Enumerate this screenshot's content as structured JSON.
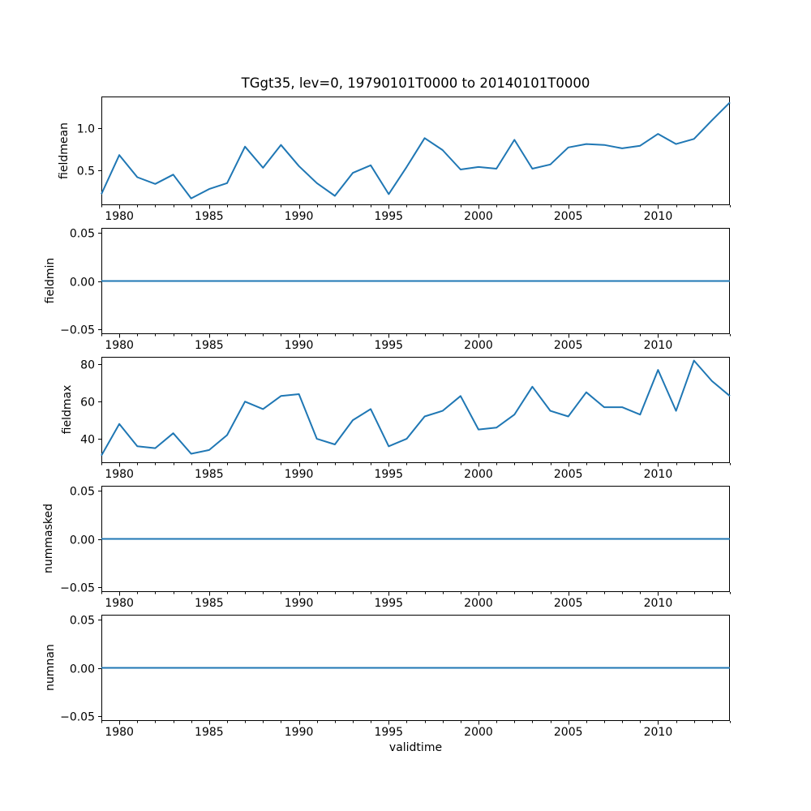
{
  "chart_data": {
    "type": "line",
    "title": "TGgt35, lev=0, 19790101T0000 to 20140101T0000",
    "xlabel": "validtime",
    "line_color": "#1f77b4",
    "grid": false,
    "legend": "none",
    "x": [
      1979,
      1980,
      1981,
      1982,
      1983,
      1984,
      1985,
      1986,
      1987,
      1988,
      1989,
      1990,
      1991,
      1992,
      1993,
      1994,
      1995,
      1996,
      1997,
      1998,
      1999,
      2000,
      2001,
      2002,
      2003,
      2004,
      2005,
      2006,
      2007,
      2008,
      2009,
      2010,
      2011,
      2012,
      2013,
      2014
    ],
    "xlim": [
      1979,
      2014
    ],
    "xticks": [
      1980,
      1985,
      1990,
      1995,
      2000,
      2005,
      2010
    ],
    "xtick_labels": [
      "1980",
      "1985",
      "1990",
      "1995",
      "2000",
      "2005",
      "2010"
    ],
    "subplots": [
      {
        "ylabel": "fieldmean",
        "values": [
          0.22,
          0.68,
          0.42,
          0.34,
          0.45,
          0.17,
          0.28,
          0.35,
          0.78,
          0.53,
          0.8,
          0.55,
          0.35,
          0.2,
          0.47,
          0.56,
          0.22,
          0.54,
          0.88,
          0.74,
          0.51,
          0.54,
          0.52,
          0.86,
          0.52,
          0.57,
          0.77,
          0.81,
          0.8,
          0.76,
          0.79,
          0.93,
          0.81,
          0.87,
          1.09,
          1.3
        ],
        "ylim": [
          0.09,
          1.37
        ],
        "yticks": [
          0.5,
          1.0
        ],
        "ytick_labels": [
          "0.5",
          "1.0"
        ]
      },
      {
        "ylabel": "fieldmin",
        "values": [
          0,
          0,
          0,
          0,
          0,
          0,
          0,
          0,
          0,
          0,
          0,
          0,
          0,
          0,
          0,
          0,
          0,
          0,
          0,
          0,
          0,
          0,
          0,
          0,
          0,
          0,
          0,
          0,
          0,
          0,
          0,
          0,
          0,
          0,
          0,
          0
        ],
        "ylim": [
          -0.055,
          0.055
        ],
        "yticks": [
          -0.05,
          0.0,
          0.05
        ],
        "ytick_labels": [
          "−0.05",
          "0.00",
          "0.05"
        ]
      },
      {
        "ylabel": "fieldmax",
        "values": [
          31,
          48,
          36,
          35,
          43,
          32,
          34,
          42,
          60,
          56,
          63,
          64,
          40,
          37,
          50,
          56,
          36,
          40,
          52,
          55,
          63,
          45,
          46,
          53,
          68,
          55,
          52,
          65,
          57,
          57,
          53,
          77,
          55,
          82,
          71,
          63
        ],
        "ylim": [
          27,
          84
        ],
        "yticks": [
          40,
          60,
          80
        ],
        "ytick_labels": [
          "40",
          "60",
          "80"
        ]
      },
      {
        "ylabel": "nummasked",
        "values": [
          0,
          0,
          0,
          0,
          0,
          0,
          0,
          0,
          0,
          0,
          0,
          0,
          0,
          0,
          0,
          0,
          0,
          0,
          0,
          0,
          0,
          0,
          0,
          0,
          0,
          0,
          0,
          0,
          0,
          0,
          0,
          0,
          0,
          0,
          0,
          0
        ],
        "ylim": [
          -0.055,
          0.055
        ],
        "yticks": [
          -0.05,
          0.0,
          0.05
        ],
        "ytick_labels": [
          "−0.05",
          "0.00",
          "0.05"
        ]
      },
      {
        "ylabel": "numnan",
        "values": [
          0,
          0,
          0,
          0,
          0,
          0,
          0,
          0,
          0,
          0,
          0,
          0,
          0,
          0,
          0,
          0,
          0,
          0,
          0,
          0,
          0,
          0,
          0,
          0,
          0,
          0,
          0,
          0,
          0,
          0,
          0,
          0,
          0,
          0,
          0,
          0
        ],
        "ylim": [
          -0.055,
          0.055
        ],
        "yticks": [
          -0.05,
          0.0,
          0.05
        ],
        "ytick_labels": [
          "−0.05",
          "0.00",
          "0.05"
        ]
      }
    ]
  }
}
